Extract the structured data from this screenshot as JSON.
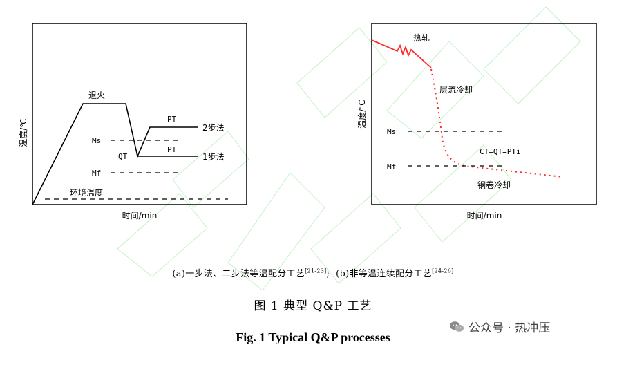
{
  "diagram_a": {
    "y_axis_label": "温度/℃",
    "x_axis_label": "时间/min",
    "labels": {
      "anneal": "退火",
      "pt_top": "PT",
      "two_step": "2步法",
      "ms": "Ms",
      "qt": "QT",
      "pt_bottom": "PT",
      "one_step": "1步法",
      "mf": "Mf",
      "ambient": "环境温度"
    }
  },
  "diagram_b": {
    "y_axis_label": "温度/℃",
    "x_axis_label": "时间/min",
    "labels": {
      "hot_rolling": "热轧",
      "laminar_cooling": "层流冷却",
      "ms": "Ms",
      "ct_qt_pti": "CT=QT=PTi",
      "mf": "Mf",
      "coil_cooling": "钢卷冷却"
    },
    "colors": {
      "process_line": "#ff2a2a"
    }
  },
  "captions": {
    "sub_a": "(a)一步法、二步法等温配分工艺",
    "ref_a": "[21-23]",
    "separator": ";",
    "sub_b": "(b)非等温连续配分工艺",
    "ref_b": "[24-26]",
    "figure_cn": "图 1   典型 Q&P 工艺",
    "figure_en": "Fig. 1   Typical Q&P processes"
  },
  "watermark": {
    "text": "公众号 · 热冲压",
    "icon": "wechat-icon"
  }
}
